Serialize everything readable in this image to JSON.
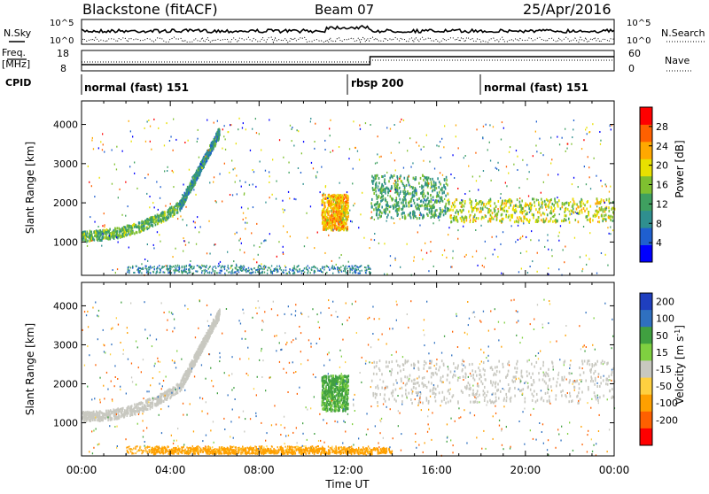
{
  "header": {
    "station": "Blackstone (fitACF)",
    "beam": "Beam 07",
    "date": "25/Apr/2016"
  },
  "top_panels": {
    "nsky_label": "N.Sky",
    "nsearch_label": "N.Search",
    "nsky_ticks": [
      "10^5",
      "10^0"
    ],
    "nsearch_ticks": [
      "10^5",
      "10^0"
    ],
    "freq_label_1": "Freq.",
    "freq_label_2": "[MHz]",
    "freq_ticks": [
      "18",
      "8"
    ],
    "nave_label": "Nave",
    "nave_ticks": [
      "60",
      "0"
    ],
    "cpid_label": "CPID",
    "cpid_segments": [
      {
        "label": "normal (fast) 151",
        "start": 0,
        "end": 12
      },
      {
        "label": "rbsp 200",
        "start": 12,
        "end": 18
      },
      {
        "label": "normal (fast) 151",
        "start": 18,
        "end": 24
      }
    ]
  },
  "colors": {
    "power_scale": [
      "#0000ff",
      "#1f5fcf",
      "#2f8f8f",
      "#3fa060",
      "#7fc030",
      "#e8e000",
      "#ffa800",
      "#ff6000",
      "#ff0000"
    ],
    "velocity_scale": [
      "#1f3fbf",
      "#2f70c0",
      "#40a040",
      "#7fd040",
      "#c8c8c0",
      "#ffd040",
      "#ffa000",
      "#ff6000",
      "#ff0000"
    ],
    "ground_scatter": "#b0b0b0"
  },
  "chart_data": [
    {
      "type": "heatmap",
      "name": "power-panel",
      "ylabel": "Slant Range [km]",
      "xlabel": "Time UT",
      "xlim": [
        0,
        24
      ],
      "ylim": [
        150,
        4600
      ],
      "x_ticks": [
        "00:00",
        "04:00",
        "08:00",
        "12:00",
        "16:00",
        "20:00",
        "00:00"
      ],
      "x_tick_values": [
        0,
        4,
        8,
        12,
        16,
        20,
        24
      ],
      "y_ticks": [
        1000,
        2000,
        3000,
        4000
      ],
      "colorbar": {
        "label": "Power [dB]",
        "ticks": [
          4,
          8,
          12,
          16,
          20,
          24,
          28
        ],
        "range": [
          0,
          32
        ]
      },
      "features": [
        {
          "t0": 0.0,
          "t1": 4.4,
          "r0": 1150,
          "r1": 1900,
          "value": 14
        },
        {
          "t0": 4.4,
          "t1": 6.2,
          "r0": 1900,
          "r1": 3800,
          "value": 10
        },
        {
          "t0": 10.8,
          "t1": 12.0,
          "r0": 1300,
          "r1": 2200,
          "value": 22
        },
        {
          "t0": 13.0,
          "t1": 16.5,
          "r0": 1600,
          "r1": 2700,
          "value": 12
        },
        {
          "t0": 16.5,
          "t1": 24.0,
          "r0": 1500,
          "r1": 2100,
          "value": 18
        }
      ]
    },
    {
      "type": "heatmap",
      "name": "velocity-panel",
      "ylabel": "Slant Range [km]",
      "xlabel": "Time UT",
      "xlim": [
        0,
        24
      ],
      "ylim": [
        150,
        4600
      ],
      "x_ticks": [
        "00:00",
        "04:00",
        "08:00",
        "12:00",
        "16:00",
        "20:00",
        "00:00"
      ],
      "x_tick_values": [
        0,
        4,
        8,
        12,
        16,
        20,
        24
      ],
      "y_ticks": [
        1000,
        2000,
        3000,
        4000
      ],
      "colorbar": {
        "label": "Velocity [m s",
        "label_sup": "-1",
        "label_end": "]",
        "ticks": [
          200,
          100,
          50,
          15,
          -15,
          -50,
          -100,
          -200
        ]
      },
      "features": [
        {
          "t0": 0.0,
          "t1": 4.4,
          "r0": 1150,
          "r1": 1900,
          "value": 0
        },
        {
          "t0": 4.4,
          "t1": 6.2,
          "r0": 1900,
          "r1": 3800,
          "value": 0
        },
        {
          "t0": 10.8,
          "t1": 12.0,
          "r0": 1300,
          "r1": 2200,
          "value": 60
        },
        {
          "t0": 13.0,
          "t1": 24.0,
          "r0": 1500,
          "r1": 2600,
          "value": 0
        },
        {
          "t0": 3.0,
          "t1": 14.0,
          "r0": 200,
          "r1": 350,
          "value": -80
        }
      ]
    }
  ]
}
